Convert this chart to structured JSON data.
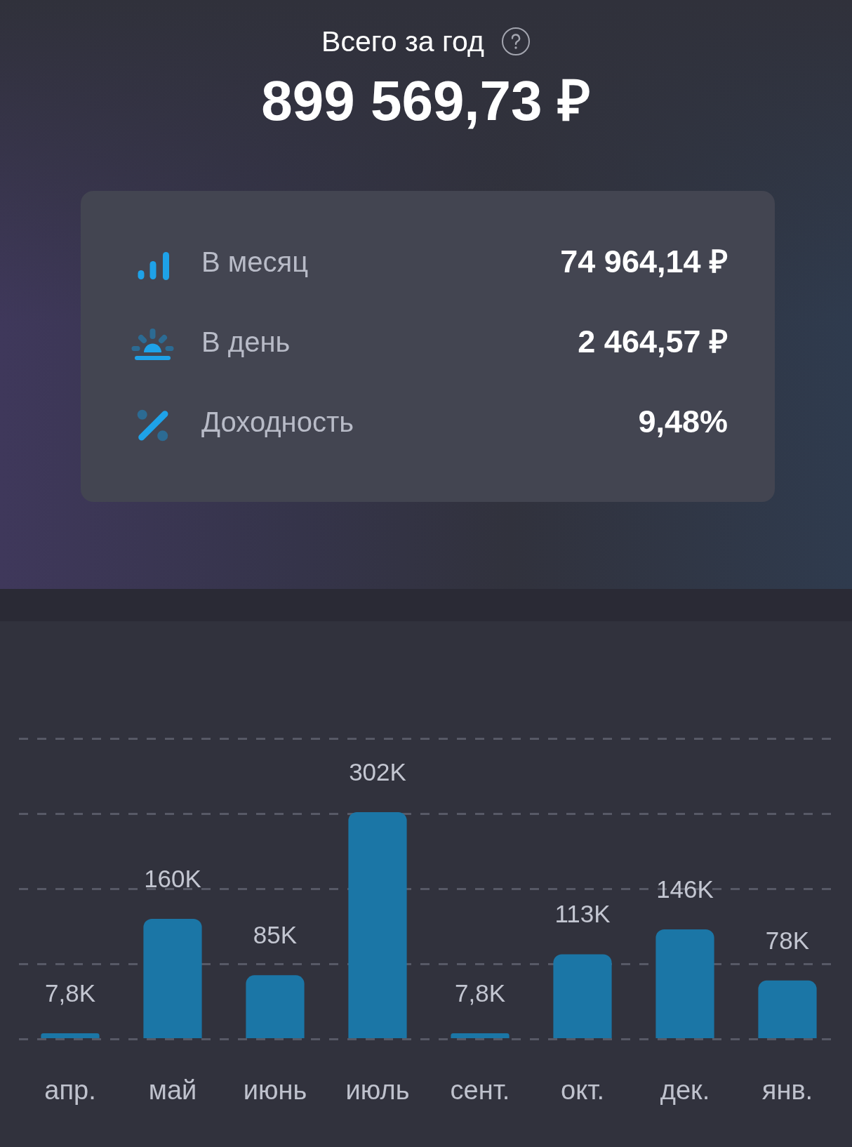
{
  "chart_data": [
    {
      "type": "other",
      "title": "Всего за год",
      "subtitle": "899 569,73 ₽",
      "annotations": [
        "В месяц",
        "74 964,14 ₽",
        "В день",
        "2 464,57 ₽",
        "Доходность",
        "9,48%"
      ]
    },
    {
      "type": "bar",
      "categories": [
        "апр.",
        "май",
        "июнь",
        "июль",
        "сент.",
        "окт.",
        "дек.",
        "янв."
      ],
      "values": [
        7800,
        160000,
        85000,
        302000,
        7800,
        113000,
        146000,
        78000
      ],
      "value_labels": [
        "7,8K",
        "160K",
        "85K",
        "302K",
        "7,8K",
        "113K",
        "146K",
        "78K"
      ],
      "color": "#1b76a6",
      "ylim": [
        0,
        400000
      ],
      "yticks": [
        {
          "value": 100000,
          "label": null
        },
        {
          "value": 200000,
          "label": null
        },
        {
          "value": 300000,
          "label": null
        }
      ],
      "grid": "y",
      "tick_labels": "x"
    }
  ]
}
